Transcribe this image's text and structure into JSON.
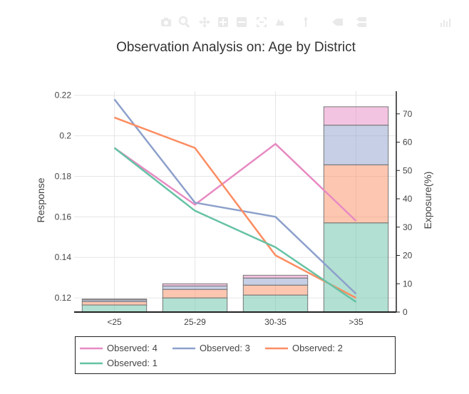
{
  "toolbar": {
    "icons": [
      "camera-icon",
      "zoom-icon",
      "pan-icon",
      "zoom-in-icon",
      "zoom-out-icon",
      "autoscale-icon",
      "reset-axes-icon",
      "spike-lines-icon",
      "hover-closest-icon",
      "hover-compare-icon",
      "plotly-logo-icon"
    ],
    "color": "#e9e9e9"
  },
  "chart_data": {
    "type": "bar",
    "title": "Observation Analysis on:  Age by District",
    "categories": [
      "<25",
      "25-29",
      "30-35",
      ">35"
    ],
    "xlabel": "",
    "ylabel": "Response",
    "y2label": "Exposure(%)",
    "ylim": [
      0.113,
      0.222
    ],
    "y2lim": [
      0,
      78
    ],
    "yticks": [
      0.12,
      0.14,
      0.16,
      0.18,
      0.2,
      0.22
    ],
    "ytick_labels": [
      "0.12",
      "0.14",
      "0.16",
      "0.18",
      "0.2",
      "0.22"
    ],
    "y2ticks": [
      0,
      10,
      20,
      30,
      40,
      50,
      60,
      70
    ],
    "bars": {
      "axis": "y2",
      "stacked": true,
      "series": [
        {
          "name": "Observed: 1",
          "values": [
            2.5,
            5,
            6,
            31.5
          ],
          "color": "#66c2a5"
        },
        {
          "name": "Observed: 2",
          "values": [
            1.2,
            3,
            3.5,
            20.5
          ],
          "color": "#fc8d62"
        },
        {
          "name": "Observed: 3",
          "values": [
            0.6,
            1.2,
            2.5,
            14
          ],
          "color": "#8da0cb"
        },
        {
          "name": "Observed: 4",
          "values": [
            0.3,
            0.8,
            1,
            6.5
          ],
          "color": "#e78ac3"
        }
      ]
    },
    "series": [
      {
        "name": "Observed: 4",
        "values": [
          0.194,
          0.166,
          0.196,
          0.158
        ],
        "color": "#e78ac3"
      },
      {
        "name": "Observed: 3",
        "values": [
          0.218,
          0.167,
          0.16,
          0.122
        ],
        "color": "#8da0cb"
      },
      {
        "name": "Observed: 2",
        "values": [
          0.209,
          0.194,
          0.141,
          0.12
        ],
        "color": "#fc8d62"
      },
      {
        "name": "Observed: 1",
        "values": [
          0.194,
          0.163,
          0.145,
          0.118
        ],
        "color": "#66c2a5"
      }
    ],
    "grid": true,
    "legend": {
      "position": "bottom",
      "entries": [
        "Observed: 4",
        "Observed: 3",
        "Observed: 2",
        "Observed: 1"
      ]
    }
  }
}
